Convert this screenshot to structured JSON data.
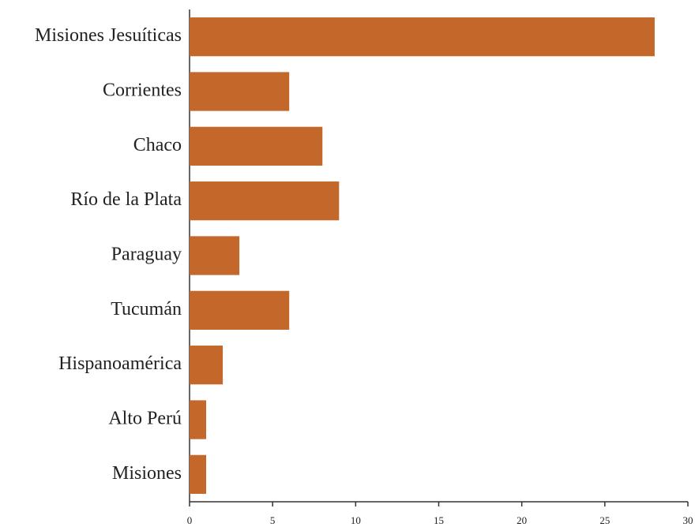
{
  "chart_data": {
    "type": "bar",
    "orientation": "horizontal",
    "categories": [
      "Misiones Jesuíticas",
      "Corrientes",
      "Chaco",
      "Río de la Plata",
      "Paraguay",
      "Tucumán",
      "Hispanoamérica",
      "Alto Perú",
      "Misiones"
    ],
    "values": [
      28,
      6,
      8,
      9,
      3,
      6,
      2,
      1,
      1
    ],
    "color": "#c4672a",
    "xlim": [
      0,
      30
    ],
    "xticks": [
      0,
      5,
      10,
      15,
      20,
      25,
      30
    ],
    "grid": false
  }
}
